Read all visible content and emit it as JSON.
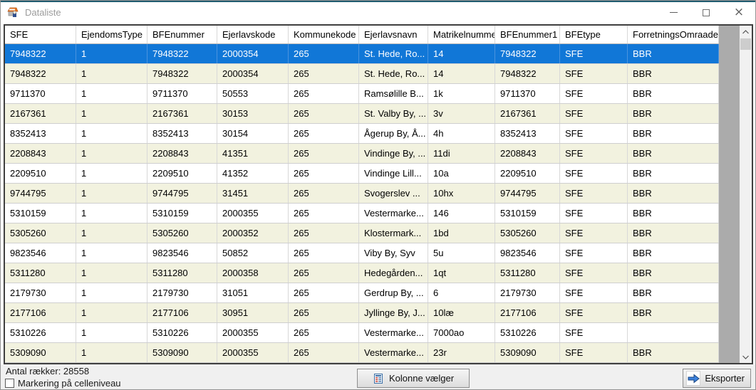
{
  "window": {
    "title": "Dataliste"
  },
  "grid": {
    "columns": [
      "SFE",
      "EjendomsType",
      "BFEnummer",
      "Ejerlavskode",
      "Kommunekode",
      "Ejerlavsnavn",
      "Matrikelnummer",
      "BFEnummer1",
      "BFEtype",
      "ForretningsOmraade"
    ],
    "selected_row_index": 0,
    "rows": [
      [
        "7948322",
        "1",
        "7948322",
        "2000354",
        "265",
        "St. Hede, Ro...",
        "14",
        "7948322",
        "SFE",
        "BBR"
      ],
      [
        "7948322",
        "1",
        "7948322",
        "2000354",
        "265",
        "St. Hede, Ro...",
        "14",
        "7948322",
        "SFE",
        "BBR"
      ],
      [
        "9711370",
        "1",
        "9711370",
        "50553",
        "265",
        "Ramsølille B...",
        "1k",
        "9711370",
        "SFE",
        "BBR"
      ],
      [
        "2167361",
        "1",
        "2167361",
        "30153",
        "265",
        "St. Valby By, ...",
        "3v",
        "2167361",
        "SFE",
        "BBR"
      ],
      [
        "8352413",
        "1",
        "8352413",
        "30154",
        "265",
        "Ågerup By, Å...",
        "4h",
        "8352413",
        "SFE",
        "BBR"
      ],
      [
        "2208843",
        "1",
        "2208843",
        "41351",
        "265",
        "Vindinge By, ...",
        "11di",
        "2208843",
        "SFE",
        "BBR"
      ],
      [
        "2209510",
        "1",
        "2209510",
        "41352",
        "265",
        "Vindinge Lill...",
        "10a",
        "2209510",
        "SFE",
        "BBR"
      ],
      [
        "9744795",
        "1",
        "9744795",
        "31451",
        "265",
        "Svogerslev ...",
        "10hx",
        "9744795",
        "SFE",
        "BBR"
      ],
      [
        "5310159",
        "1",
        "5310159",
        "2000355",
        "265",
        "Vestermarke...",
        "146",
        "5310159",
        "SFE",
        "BBR"
      ],
      [
        "5305260",
        "1",
        "5305260",
        "2000352",
        "265",
        "Klostermark...",
        "1bd",
        "5305260",
        "SFE",
        "BBR"
      ],
      [
        "9823546",
        "1",
        "9823546",
        "50852",
        "265",
        "Viby By, Syv",
        "5u",
        "9823546",
        "SFE",
        "BBR"
      ],
      [
        "5311280",
        "1",
        "5311280",
        "2000358",
        "265",
        "Hedegården...",
        "1qt",
        "5311280",
        "SFE",
        "BBR"
      ],
      [
        "2179730",
        "1",
        "2179730",
        "31051",
        "265",
        "Gerdrup By, ...",
        "6",
        "2179730",
        "SFE",
        "BBR"
      ],
      [
        "2177106",
        "1",
        "2177106",
        "30951",
        "265",
        "Jyllinge By, J...",
        "10læ",
        "2177106",
        "SFE",
        "BBR"
      ],
      [
        "5310226",
        "1",
        "5310226",
        "2000355",
        "265",
        "Vestermarke...",
        "7000ao",
        "5310226",
        "SFE",
        ""
      ],
      [
        "5309090",
        "1",
        "5309090",
        "2000355",
        "265",
        "Vestermarke...",
        "23r",
        "5309090",
        "SFE",
        "BBR"
      ]
    ]
  },
  "footer": {
    "row_count_label": "Antal rækker: 28558",
    "cell_selection_checkbox_label": "Markering på celleniveau",
    "cell_selection_checked": false,
    "column_picker_button_label": "Kolonne vælger",
    "export_button_label": "Eksporter"
  },
  "icons": {
    "app_icon": "dataliste-app-icon",
    "column_picker_icon": "table-document-icon",
    "export_icon": "blue-arrow-right-icon"
  },
  "colors": {
    "selection_blue": "#1177d7",
    "row_stripe_beige": "#f2f2df",
    "grid_filler_gray": "#ababab",
    "titlebar_accent": "#215c70",
    "statusbar_gray": "#f0f0f0"
  }
}
